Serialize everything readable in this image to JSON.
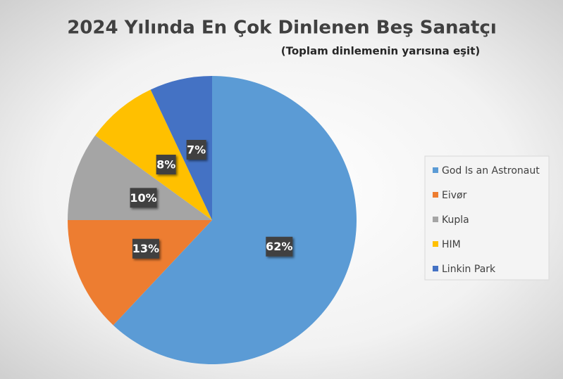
{
  "chart_data": {
    "type": "pie",
    "title": "2024 Yılında En Çok Dinlenen Beş Sanatçı",
    "subtitle": "(Toplam dinlemenin yarısına eşit)",
    "categories": [
      "God Is an Astronaut",
      "Eivør",
      "Kupla",
      "HIM",
      "Linkin Park"
    ],
    "values": [
      62,
      13,
      10,
      8,
      7
    ],
    "value_labels": [
      "62%",
      "13%",
      "10%",
      "8%",
      "7%"
    ],
    "colors": [
      "#5b9bd5",
      "#ed7d31",
      "#a5a5a5",
      "#ffc000",
      "#4472c4"
    ],
    "legend": "right"
  }
}
